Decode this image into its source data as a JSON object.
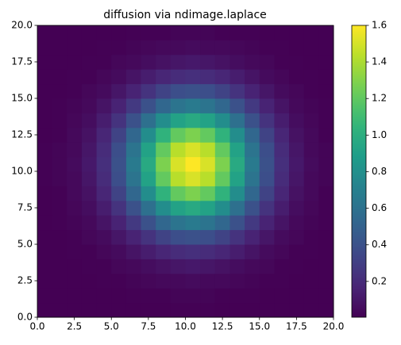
{
  "chart_data": {
    "type": "heatmap",
    "title": "diffusion via ndimage.laplace",
    "xlim": [
      0,
      20
    ],
    "ylim": [
      0,
      20
    ],
    "xticks": [
      {
        "value": 0,
        "label": "0.0"
      },
      2.5,
      {
        "value": 5,
        "label": "5.0"
      },
      7.5,
      {
        "value": 10,
        "label": "10.0"
      },
      12.5,
      {
        "value": 15,
        "label": "15.0"
      },
      17.5,
      {
        "value": 20,
        "label": "20.0"
      }
    ],
    "yticks": [
      {
        "value": 0,
        "label": "0.0"
      },
      2.5,
      {
        "value": 5,
        "label": "5.0"
      },
      7.5,
      {
        "value": 10,
        "label": "10.0"
      },
      12.5,
      {
        "value": 15,
        "label": "15.0"
      },
      17.5,
      {
        "value": 20,
        "label": "20.0"
      }
    ],
    "colormap": "viridis",
    "clim": [
      0.004,
      1.6
    ],
    "cticks": [
      0.2,
      0.4,
      0.6,
      0.8,
      {
        "value": 1,
        "label": "1.0"
      },
      1.2,
      1.4,
      1.6
    ],
    "z": [
      [
        0,
        0,
        0,
        0,
        0,
        0,
        0,
        0,
        0,
        0.01,
        0.01,
        0.01,
        0,
        0,
        0,
        0,
        0,
        0,
        0,
        0
      ],
      [
        0,
        0,
        0,
        0,
        0,
        0,
        0.01,
        0.01,
        0.01,
        0.02,
        0.02,
        0.02,
        0.01,
        0.01,
        0.01,
        0,
        0,
        0,
        0,
        0
      ],
      [
        0,
        0,
        0,
        0,
        0.01,
        0.01,
        0.02,
        0.03,
        0.04,
        0.04,
        0.05,
        0.04,
        0.04,
        0.03,
        0.02,
        0.01,
        0.01,
        0,
        0,
        0
      ],
      [
        0,
        0,
        0,
        0.01,
        0.01,
        0.03,
        0.04,
        0.06,
        0.08,
        0.1,
        0.11,
        0.1,
        0.08,
        0.06,
        0.04,
        0.03,
        0.01,
        0.01,
        0,
        0
      ],
      [
        0,
        0,
        0.01,
        0.01,
        0.03,
        0.05,
        0.09,
        0.13,
        0.17,
        0.2,
        0.22,
        0.2,
        0.17,
        0.13,
        0.09,
        0.05,
        0.03,
        0.01,
        0.01,
        0
      ],
      [
        0,
        0,
        0.01,
        0.03,
        0.05,
        0.1,
        0.16,
        0.24,
        0.32,
        0.38,
        0.4,
        0.38,
        0.32,
        0.24,
        0.16,
        0.1,
        0.05,
        0.03,
        0.01,
        0
      ],
      [
        0,
        0.01,
        0.02,
        0.04,
        0.09,
        0.16,
        0.27,
        0.4,
        0.53,
        0.62,
        0.66,
        0.62,
        0.53,
        0.4,
        0.27,
        0.16,
        0.09,
        0.04,
        0.02,
        0.01
      ],
      [
        0,
        0.01,
        0.03,
        0.06,
        0.13,
        0.24,
        0.4,
        0.59,
        0.78,
        0.92,
        0.97,
        0.92,
        0.78,
        0.59,
        0.4,
        0.24,
        0.13,
        0.06,
        0.03,
        0.01
      ],
      [
        0,
        0.01,
        0.04,
        0.08,
        0.17,
        0.32,
        0.53,
        0.78,
        1.03,
        1.21,
        1.28,
        1.21,
        1.03,
        0.78,
        0.53,
        0.32,
        0.17,
        0.08,
        0.04,
        0.01
      ],
      [
        0.01,
        0.02,
        0.04,
        0.1,
        0.2,
        0.38,
        0.62,
        0.92,
        1.21,
        1.43,
        1.51,
        1.43,
        1.21,
        0.92,
        0.62,
        0.38,
        0.2,
        0.1,
        0.04,
        0.02
      ],
      [
        0.01,
        0.02,
        0.05,
        0.11,
        0.22,
        0.4,
        0.66,
        0.97,
        1.28,
        1.51,
        1.6,
        1.51,
        1.28,
        0.97,
        0.66,
        0.4,
        0.22,
        0.11,
        0.05,
        0.02
      ],
      [
        0.01,
        0.02,
        0.04,
        0.1,
        0.2,
        0.38,
        0.62,
        0.92,
        1.21,
        1.43,
        1.51,
        1.43,
        1.21,
        0.92,
        0.62,
        0.38,
        0.2,
        0.1,
        0.04,
        0.02
      ],
      [
        0,
        0.01,
        0.04,
        0.08,
        0.17,
        0.32,
        0.53,
        0.78,
        1.03,
        1.21,
        1.28,
        1.21,
        1.03,
        0.78,
        0.53,
        0.32,
        0.17,
        0.08,
        0.04,
        0.01
      ],
      [
        0,
        0.01,
        0.03,
        0.06,
        0.13,
        0.24,
        0.4,
        0.59,
        0.78,
        0.92,
        0.97,
        0.92,
        0.78,
        0.59,
        0.4,
        0.24,
        0.13,
        0.06,
        0.03,
        0.01
      ],
      [
        0,
        0.01,
        0.02,
        0.04,
        0.09,
        0.16,
        0.27,
        0.4,
        0.53,
        0.62,
        0.66,
        0.62,
        0.53,
        0.4,
        0.27,
        0.16,
        0.09,
        0.04,
        0.02,
        0.01
      ],
      [
        0,
        0,
        0.01,
        0.03,
        0.05,
        0.1,
        0.16,
        0.24,
        0.32,
        0.38,
        0.4,
        0.38,
        0.32,
        0.24,
        0.16,
        0.1,
        0.05,
        0.03,
        0.01,
        0
      ],
      [
        0,
        0,
        0.01,
        0.01,
        0.03,
        0.05,
        0.09,
        0.13,
        0.17,
        0.2,
        0.22,
        0.2,
        0.17,
        0.13,
        0.09,
        0.05,
        0.03,
        0.01,
        0.01,
        0
      ],
      [
        0,
        0,
        0,
        0.01,
        0.01,
        0.03,
        0.04,
        0.06,
        0.08,
        0.1,
        0.11,
        0.1,
        0.08,
        0.06,
        0.04,
        0.03,
        0.01,
        0.01,
        0,
        0
      ],
      [
        0,
        0,
        0,
        0,
        0.01,
        0.01,
        0.02,
        0.03,
        0.04,
        0.04,
        0.05,
        0.04,
        0.04,
        0.03,
        0.02,
        0.01,
        0.01,
        0,
        0,
        0
      ],
      [
        0,
        0,
        0,
        0,
        0,
        0,
        0.01,
        0.01,
        0.01,
        0.02,
        0.02,
        0.02,
        0.01,
        0.01,
        0.01,
        0,
        0,
        0,
        0,
        0
      ]
    ]
  }
}
